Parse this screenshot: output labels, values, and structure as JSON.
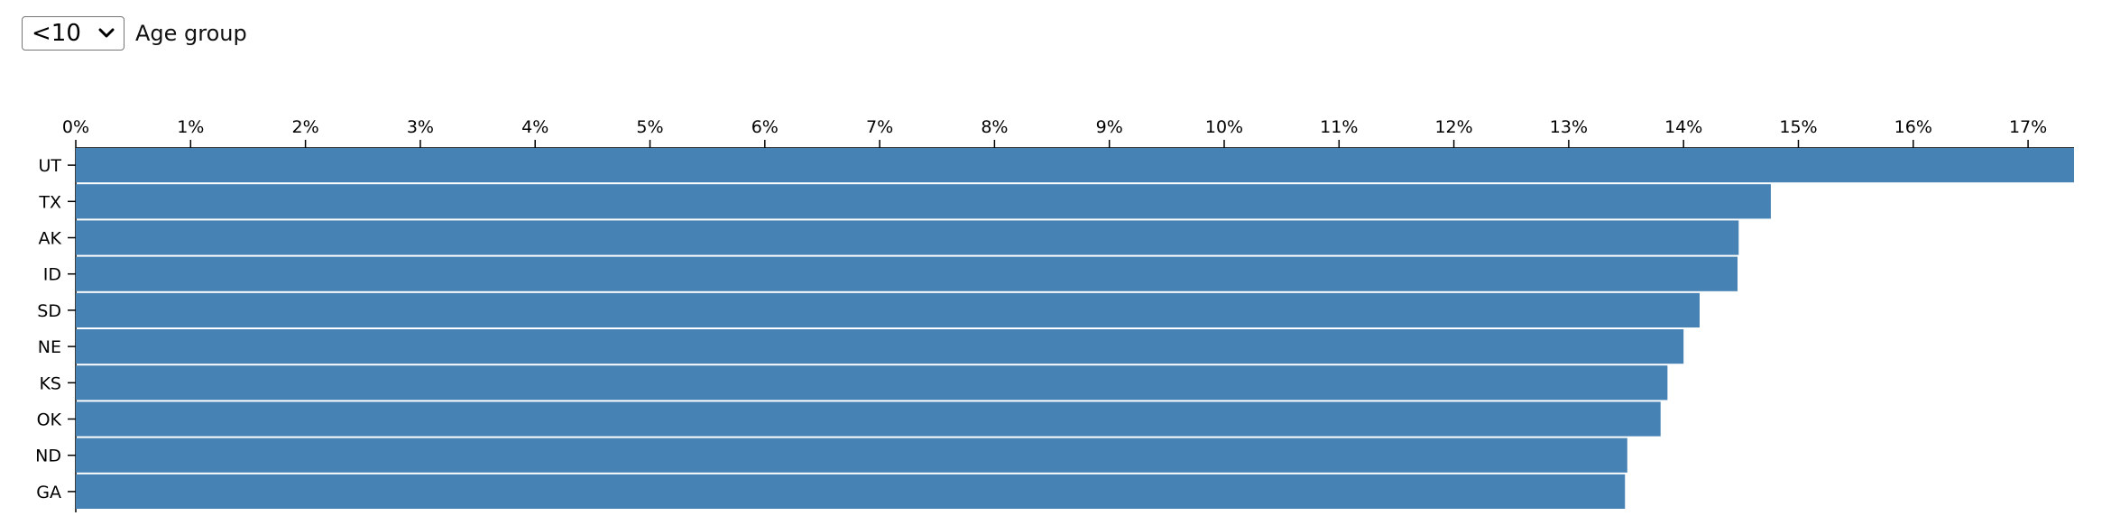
{
  "controls": {
    "select_value": "<10",
    "label": "Age group"
  },
  "colors": {
    "bar": "#4682b4",
    "axis": "#000000"
  },
  "chart_data": {
    "type": "bar",
    "orientation": "horizontal",
    "title": "",
    "xlabel": "",
    "ylabel": "",
    "xlim": [
      0,
      0.174
    ],
    "x_tick_values": [
      0,
      0.01,
      0.02,
      0.03,
      0.04,
      0.05,
      0.06,
      0.07,
      0.08,
      0.09,
      0.1,
      0.11,
      0.12,
      0.13,
      0.14,
      0.15,
      0.16,
      0.17
    ],
    "x_tick_labels": [
      "0%",
      "1%",
      "2%",
      "3%",
      "4%",
      "5%",
      "6%",
      "7%",
      "8%",
      "9%",
      "10%",
      "11%",
      "12%",
      "13%",
      "14%",
      "15%",
      "16%",
      "17%"
    ],
    "x_axis_position": "top",
    "grid": false,
    "categories": [
      "UT",
      "TX",
      "AK",
      "ID",
      "SD",
      "NE",
      "KS",
      "OK",
      "ND",
      "GA"
    ],
    "values": [
      0.174,
      0.1476,
      0.1448,
      0.1447,
      0.1414,
      0.14,
      0.1386,
      0.138,
      0.1351,
      0.1349
    ]
  }
}
